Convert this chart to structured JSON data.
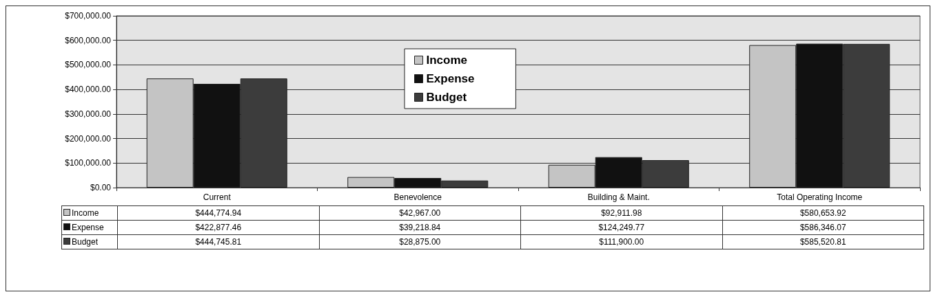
{
  "chart_data": {
    "type": "bar",
    "categories": [
      "Current",
      "Benevolence",
      "Building & Maint.",
      "Total Operating Income"
    ],
    "series": [
      {
        "name": "Income",
        "color": "#c4c4c4",
        "values": [
          444774.94,
          42967.0,
          92911.98,
          580653.92
        ],
        "value_labels": [
          "$444,774.94",
          "$42,967.00",
          "$92,911.98",
          "$580,653.92"
        ]
      },
      {
        "name": "Expense",
        "color": "#111111",
        "values": [
          422877.46,
          39218.84,
          124249.77,
          586346.07
        ],
        "value_labels": [
          "$422,877.46",
          "$39,218.84",
          "$124,249.77",
          "$586,346.07"
        ]
      },
      {
        "name": "Budget",
        "color": "#3c3c3c",
        "values": [
          444745.81,
          28875.0,
          111900.0,
          585520.81
        ],
        "value_labels": [
          "$444,745.81",
          "$28,875.00",
          "$111,900.00",
          "$585,520.81"
        ]
      }
    ],
    "ylim": [
      0,
      700000
    ],
    "yticks": [
      {
        "value": 0,
        "label": "$0.00"
      },
      {
        "value": 100000,
        "label": "$100,000.00"
      },
      {
        "value": 200000,
        "label": "$200,000.00"
      },
      {
        "value": 300000,
        "label": "$300,000.00"
      },
      {
        "value": 400000,
        "label": "$400,000.00"
      },
      {
        "value": 500000,
        "label": "$500,000.00"
      },
      {
        "value": 600000,
        "label": "$600,000.00"
      },
      {
        "value": 700000,
        "label": "$700,000.00"
      }
    ],
    "grid": "y",
    "legend": "top"
  }
}
